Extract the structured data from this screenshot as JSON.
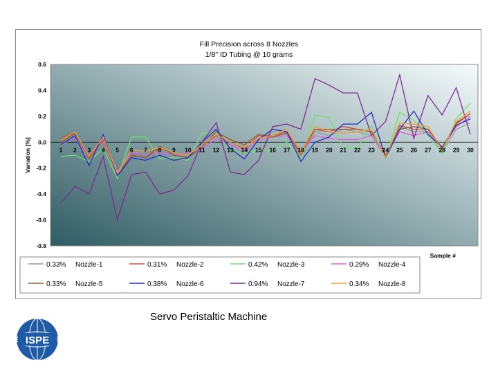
{
  "caption": "Servo Peristaltic Machine",
  "logo": {
    "text": "ISPE",
    "color": "#1f5aa6"
  },
  "colors": {
    "plot_gradient_start": "#2f5c63",
    "plot_gradient_end": "#f6fbfc",
    "frame": "#8a8a8a"
  },
  "chart_data": {
    "type": "line",
    "title": [
      "Fill Precision across 8 Nozzles",
      "1/8\" ID Tubing @ 10 grams"
    ],
    "xlabel": "Sample #",
    "ylabel": "Variation [%]",
    "ylim": [
      -0.8,
      0.6
    ],
    "yticks": [
      "0.6",
      "0.4",
      "0.2",
      "0.0",
      "-0.2",
      "-0.4",
      "-0.6",
      "-0.8"
    ],
    "ytick_values": [
      0.6,
      0.4,
      0.2,
      0.0,
      -0.2,
      -0.4,
      -0.6,
      -0.8
    ],
    "categories": [
      "1",
      "2",
      "3",
      "4",
      "5",
      "6",
      "7",
      "8",
      "9",
      "10",
      "11",
      "12",
      "13",
      "14",
      "15",
      "16",
      "17",
      "18",
      "19",
      "20",
      "21",
      "22",
      "23",
      "24",
      "25",
      "26",
      "27",
      "28",
      "29",
      "30"
    ],
    "grid": false,
    "legend_position": "bottom",
    "series": [
      {
        "name": "Nozzle-1",
        "stat": "0.33%",
        "color": "#999999",
        "values": [
          -0.03,
          0.05,
          -0.15,
          0.0,
          -0.27,
          -0.08,
          -0.08,
          -0.1,
          -0.12,
          -0.12,
          0.0,
          0.08,
          -0.05,
          -0.08,
          0.03,
          0.08,
          0.1,
          -0.13,
          0.08,
          0.05,
          0.1,
          0.08,
          0.05,
          -0.12,
          0.12,
          0.08,
          0.08,
          -0.08,
          0.1,
          0.15
        ]
      },
      {
        "name": "Nozzle-2",
        "stat": "0.31%",
        "color": "#d84a3c",
        "values": [
          0.03,
          0.08,
          -0.13,
          0.02,
          -0.25,
          -0.1,
          -0.12,
          -0.05,
          -0.08,
          -0.1,
          -0.02,
          0.05,
          0.0,
          -0.05,
          0.05,
          0.05,
          0.08,
          -0.1,
          0.1,
          0.08,
          0.12,
          0.1,
          0.08,
          -0.1,
          0.13,
          0.1,
          0.1,
          -0.05,
          0.15,
          0.22
        ]
      },
      {
        "name": "Nozzle-3",
        "stat": "0.42%",
        "color": "#6ee36a",
        "values": [
          -0.11,
          -0.1,
          -0.15,
          -0.05,
          -0.28,
          0.04,
          0.04,
          -0.13,
          -0.12,
          -0.14,
          0.07,
          0.07,
          -0.07,
          -0.08,
          -0.06,
          -0.07,
          0.0,
          -0.14,
          0.21,
          0.19,
          -0.04,
          -0.04,
          0.13,
          -0.13,
          0.23,
          0.17,
          0.05,
          -0.09,
          0.18,
          0.3
        ]
      },
      {
        "name": "Nozzle-4",
        "stat": "0.29%",
        "color": "#e35ad8",
        "values": [
          -0.01,
          0.03,
          -0.12,
          0.03,
          -0.23,
          -0.08,
          -0.1,
          -0.08,
          -0.1,
          -0.08,
          -0.05,
          0.03,
          -0.02,
          -0.07,
          0.02,
          0.04,
          0.05,
          -0.07,
          0.05,
          0.03,
          0.02,
          0.02,
          0.05,
          -0.1,
          0.08,
          0.05,
          0.08,
          -0.05,
          0.12,
          0.2
        ]
      },
      {
        "name": "Nozzle-5",
        "stat": "0.33%",
        "color": "#9a5a2e",
        "values": [
          0.0,
          0.07,
          -0.12,
          0.04,
          -0.26,
          -0.1,
          -0.12,
          -0.03,
          -0.1,
          -0.12,
          -0.04,
          0.08,
          0.02,
          -0.02,
          0.06,
          0.04,
          0.07,
          -0.08,
          0.1,
          0.1,
          0.1,
          0.1,
          0.08,
          -0.1,
          0.1,
          0.12,
          0.1,
          -0.04,
          0.14,
          0.22
        ]
      },
      {
        "name": "Nozzle-6",
        "stat": "0.38%",
        "color": "#1f2fc8",
        "values": [
          -0.02,
          0.05,
          -0.18,
          0.06,
          -0.26,
          -0.12,
          -0.14,
          -0.1,
          -0.14,
          -0.12,
          0.0,
          0.1,
          -0.05,
          -0.13,
          0.02,
          0.1,
          0.08,
          -0.15,
          0.0,
          0.04,
          0.14,
          0.14,
          0.23,
          -0.12,
          0.1,
          0.24,
          0.06,
          -0.04,
          0.13,
          0.18
        ]
      },
      {
        "name": "Nozzle-7",
        "stat": "0.94%",
        "color": "#7b2c91",
        "values": [
          -0.47,
          -0.34,
          -0.4,
          -0.11,
          -0.6,
          -0.25,
          -0.23,
          -0.4,
          -0.37,
          -0.26,
          0.0,
          0.15,
          -0.23,
          -0.25,
          -0.14,
          0.12,
          0.14,
          0.1,
          0.49,
          0.44,
          0.38,
          0.38,
          0.05,
          0.16,
          0.52,
          0.03,
          0.36,
          0.21,
          0.42,
          0.06
        ]
      },
      {
        "name": "Nozzle-8",
        "stat": "0.34%",
        "color": "#f0a034",
        "values": [
          0.01,
          0.08,
          -0.11,
          0.04,
          -0.24,
          -0.06,
          -0.07,
          -0.04,
          -0.08,
          -0.1,
          -0.02,
          0.06,
          0.0,
          -0.04,
          0.03,
          0.05,
          0.1,
          -0.08,
          0.12,
          0.08,
          0.07,
          0.08,
          0.1,
          -0.12,
          0.15,
          0.14,
          0.12,
          -0.06,
          0.16,
          0.24
        ]
      }
    ]
  }
}
